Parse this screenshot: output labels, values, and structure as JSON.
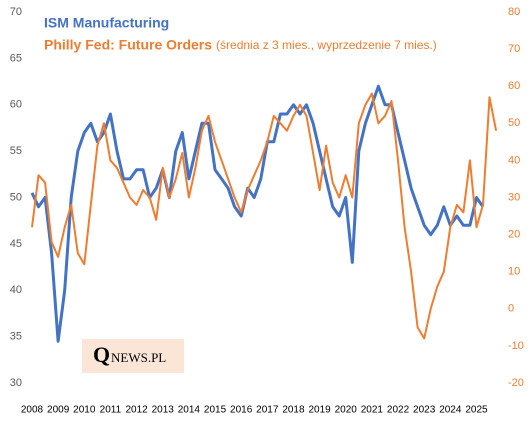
{
  "chart_data": {
    "type": "line",
    "title": "ISM Manufacturing",
    "series_note": "(średnia z 3 mies., wyprzedzenie 7 mies.)",
    "x": [
      2008,
      2008.25,
      2008.5,
      2008.75,
      2009,
      2009.25,
      2009.5,
      2009.75,
      2010,
      2010.25,
      2010.5,
      2010.75,
      2011,
      2011.25,
      2011.5,
      2011.75,
      2012,
      2012.25,
      2012.5,
      2012.75,
      2013,
      2013.25,
      2013.5,
      2013.75,
      2014,
      2014.25,
      2014.5,
      2014.75,
      2015,
      2015.25,
      2015.5,
      2015.75,
      2016,
      2016.25,
      2016.5,
      2016.75,
      2017,
      2017.25,
      2017.5,
      2017.75,
      2018,
      2018.25,
      2018.5,
      2018.75,
      2019,
      2019.25,
      2019.5,
      2019.75,
      2020,
      2020.25,
      2020.5,
      2020.75,
      2021,
      2021.25,
      2021.5,
      2021.75,
      2022,
      2022.25,
      2022.5,
      2022.75,
      2023,
      2023.25,
      2023.5,
      2023.75,
      2024,
      2024.25,
      2024.5,
      2024.75,
      2025,
      2025.25,
      2025.5,
      2025.75
    ],
    "series": [
      {
        "name": "ISM Manufacturing",
        "color": "#4472c4",
        "axis": "y",
        "values": [
          50.5,
          49,
          50,
          44,
          34.5,
          40,
          50,
          55,
          57,
          58,
          56,
          57,
          59,
          55,
          52,
          52,
          53,
          53,
          50,
          51,
          53,
          50,
          55,
          57,
          52,
          55,
          58,
          58,
          53,
          52,
          51,
          49,
          48,
          51,
          50,
          52,
          56,
          56,
          59,
          59,
          60,
          59,
          60,
          58,
          55,
          52,
          49,
          48,
          50,
          43,
          55,
          58,
          60,
          62,
          60,
          60,
          57,
          54,
          51,
          49,
          47,
          46,
          47,
          49,
          47,
          48,
          47,
          47,
          50,
          49,
          null,
          null
        ]
      },
      {
        "name": "Philly Fed: Future Orders",
        "color": "#ed7d31",
        "axis": "y2",
        "values": [
          22,
          36,
          34,
          18,
          14,
          22,
          28,
          15,
          12,
          28,
          44,
          50,
          40,
          38,
          34,
          30,
          28,
          32,
          30,
          24,
          38,
          30,
          35,
          42,
          30,
          38,
          48,
          52,
          45,
          40,
          35,
          30,
          26,
          32,
          36,
          40,
          45,
          52,
          50,
          48,
          52,
          55,
          52,
          42,
          32,
          44,
          34,
          30,
          36,
          30,
          50,
          55,
          58,
          50,
          52,
          56,
          40,
          22,
          10,
          -5,
          -8,
          0,
          6,
          10,
          22,
          28,
          26,
          40,
          22,
          28,
          57,
          48
        ]
      }
    ],
    "xlim": [
      2008,
      2025.9
    ],
    "xticks": [
      2008,
      2009,
      2010,
      2011,
      2012,
      2013,
      2014,
      2015,
      2016,
      2017,
      2018,
      2019,
      2020,
      2021,
      2022,
      2023,
      2024,
      2025
    ],
    "ylim": [
      30,
      70
    ],
    "yticks": [
      30,
      35,
      40,
      45,
      50,
      55,
      60,
      65,
      70
    ],
    "y2lim": [
      -20,
      80
    ],
    "y2ticks": [
      -20,
      -10,
      0,
      10,
      20,
      30,
      40,
      50,
      60,
      70,
      80
    ],
    "grid": false
  },
  "logo": {
    "initial": "Q",
    "rest": "NEWS.PL"
  }
}
